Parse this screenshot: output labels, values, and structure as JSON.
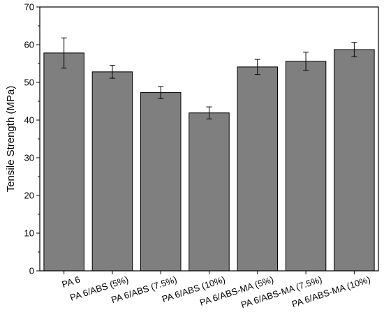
{
  "chart_data": {
    "type": "bar",
    "title": "",
    "xlabel": "",
    "ylabel": "Tensile Strength (MPa)",
    "ylim": [
      0,
      70
    ],
    "yticks": [
      0,
      10,
      20,
      30,
      40,
      50,
      60,
      70
    ],
    "grid": false,
    "bar_color": "#7f7f7f",
    "categories": [
      "PA 6",
      "PA 6/ABS (5%)",
      "PA 6/ABS (7.5%)",
      "PA 6/ABS (10%)",
      "PA 6/ABS-MA (5%)",
      "PA 6/ABS-MA (7.5%)",
      "PA 6/ABS-MA (10%)"
    ],
    "values": [
      57.8,
      52.8,
      47.3,
      41.9,
      54.1,
      55.6,
      58.7
    ],
    "errors": [
      4.0,
      1.7,
      1.6,
      1.6,
      2.0,
      2.4,
      1.9
    ]
  }
}
